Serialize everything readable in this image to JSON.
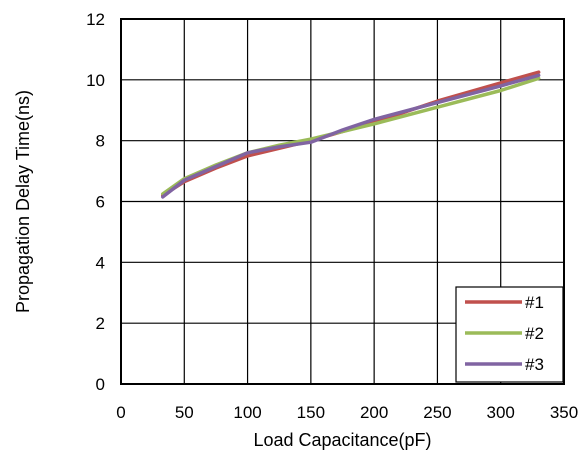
{
  "chart_data": {
    "type": "line",
    "title": "",
    "xlabel": "Load Capacitance(pF)",
    "ylabel": "Propagation Delay Time(ns)",
    "xlim": [
      0,
      350
    ],
    "ylim": [
      0,
      12
    ],
    "xticks": [
      "0",
      "50",
      "100",
      "150",
      "200",
      "250",
      "300",
      "350"
    ],
    "yticks": [
      "0",
      "2",
      "4",
      "6",
      "8",
      "10",
      "12"
    ],
    "grid": true,
    "legend_position": "bottom-right",
    "series": [
      {
        "name": "#1",
        "color": "#c0504d",
        "x": [
          33,
          50,
          75,
          100,
          125,
          150,
          175,
          200,
          250,
          300,
          330
        ],
        "y": [
          6.2,
          6.65,
          7.1,
          7.5,
          7.75,
          8.0,
          8.3,
          8.6,
          9.3,
          9.9,
          10.25
        ]
      },
      {
        "name": "#2",
        "color": "#9bbb59",
        "x": [
          33,
          50,
          75,
          100,
          125,
          150,
          175,
          200,
          250,
          300,
          330
        ],
        "y": [
          6.25,
          6.75,
          7.2,
          7.6,
          7.85,
          8.05,
          8.3,
          8.55,
          9.1,
          9.65,
          10.05
        ]
      },
      {
        "name": "#3",
        "color": "#8064a2",
        "x": [
          33,
          50,
          75,
          100,
          125,
          150,
          175,
          200,
          250,
          300,
          330
        ],
        "y": [
          6.15,
          6.7,
          7.15,
          7.6,
          7.8,
          7.95,
          8.35,
          8.7,
          9.25,
          9.8,
          10.15
        ]
      }
    ]
  }
}
